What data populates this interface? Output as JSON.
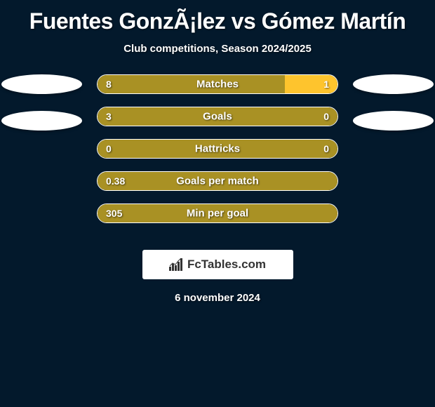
{
  "title": "Fuentes GonzÃ¡lez vs Gómez Martín",
  "subtitle": "Club competitions, Season 2024/2025",
  "date": "6 november 2024",
  "logo_text": "FcTables.com",
  "colors": {
    "background": "#03192c",
    "bar_left": "#a99124",
    "bar_right": "#fec42d",
    "oval": "#ffffff",
    "logo_bg": "#ffffff",
    "text": "#ffffff"
  },
  "chart": {
    "type": "comparison-bars",
    "rows": [
      {
        "label": "Matches",
        "left_value": "8",
        "right_value": "1",
        "left_pct": 78,
        "show_ovals": true,
        "oval_top_offset": 0
      },
      {
        "label": "Goals",
        "left_value": "3",
        "right_value": "0",
        "left_pct": 100,
        "show_ovals": true,
        "oval_top_offset": 6
      },
      {
        "label": "Hattricks",
        "left_value": "0",
        "right_value": "0",
        "left_pct": 100,
        "show_ovals": false
      },
      {
        "label": "Goals per match",
        "left_value": "0.38",
        "right_value": "",
        "left_pct": 100,
        "show_ovals": false
      },
      {
        "label": "Min per goal",
        "left_value": "305",
        "right_value": "",
        "left_pct": 100,
        "show_ovals": false
      }
    ]
  }
}
